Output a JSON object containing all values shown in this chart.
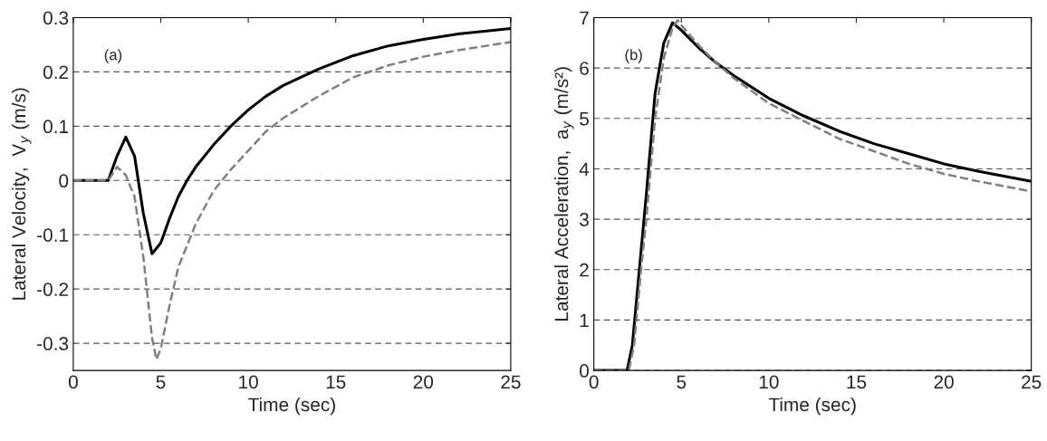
{
  "chart_data": [
    {
      "type": "line",
      "xlabel": "Time (sec)",
      "ylabel": "Lateral Velocity,  V$_{y}$ (m/s)",
      "annotations": [
        "(a)"
      ],
      "xlim": [
        0,
        25
      ],
      "xticks": [
        0,
        5,
        10,
        15,
        20,
        25
      ],
      "ylim": [
        -0.35,
        0.3
      ],
      "yticks": [
        -0.3,
        -0.2,
        -0.1,
        0,
        0.1,
        0.2,
        0.3
      ],
      "grid": "y",
      "series": [
        {
          "color": "#000000",
          "line_style": "solid",
          "x": [
            0,
            2,
            2.5,
            3,
            3.5,
            4,
            4.5,
            5,
            5.5,
            6,
            6.5,
            7,
            8,
            9,
            10,
            11,
            12,
            14,
            16,
            18,
            20,
            22,
            25
          ],
          "values": [
            0,
            0,
            0.045,
            0.08,
            0.045,
            -0.06,
            -0.135,
            -0.115,
            -0.07,
            -0.03,
            0.0,
            0.025,
            0.065,
            0.1,
            0.13,
            0.155,
            0.175,
            0.205,
            0.23,
            0.248,
            0.26,
            0.27,
            0.28
          ]
        },
        {
          "color": "#808080",
          "line_style": "dashed",
          "x": [
            0,
            2,
            2.5,
            3,
            3.5,
            4,
            4.5,
            4.75,
            5,
            5.5,
            6,
            7,
            8,
            9,
            10,
            11,
            12,
            14,
            16,
            18,
            20,
            22,
            25
          ],
          "values": [
            0,
            0,
            0.025,
            0.01,
            -0.03,
            -0.14,
            -0.29,
            -0.33,
            -0.31,
            -0.23,
            -0.16,
            -0.08,
            -0.02,
            0.02,
            0.055,
            0.09,
            0.115,
            0.155,
            0.19,
            0.212,
            0.228,
            0.24,
            0.255
          ]
        }
      ]
    },
    {
      "type": "line",
      "xlabel": "Time (sec)",
      "ylabel": "Lateral Acceleration,  a$_{y}$ (m/s²)",
      "annotations": [
        "(b)"
      ],
      "xlim": [
        0,
        25
      ],
      "xticks": [
        0,
        5,
        10,
        15,
        20,
        25
      ],
      "ylim": [
        0,
        7
      ],
      "yticks": [
        0,
        1,
        2,
        3,
        4,
        5,
        6,
        7
      ],
      "grid": "y",
      "series": [
        {
          "color": "#000000",
          "line_style": "solid",
          "x": [
            0,
            1.9,
            2.2,
            2.6,
            3,
            3.5,
            4,
            4.5,
            5,
            6,
            7,
            8,
            10,
            12,
            14,
            16,
            18,
            20,
            22,
            25
          ],
          "values": [
            0,
            0,
            0.5,
            2,
            3.5,
            5.5,
            6.5,
            6.9,
            6.75,
            6.4,
            6.1,
            5.85,
            5.4,
            5.05,
            4.75,
            4.5,
            4.3,
            4.1,
            3.95,
            3.75
          ]
        },
        {
          "color": "#808080",
          "line_style": "dashed",
          "x": [
            0,
            2,
            2.3,
            2.7,
            3,
            3.5,
            4,
            4.5,
            4.8,
            5,
            6,
            7,
            8,
            10,
            12,
            14,
            16,
            18,
            20,
            22,
            25
          ],
          "values": [
            0,
            0,
            0.5,
            2,
            3,
            5,
            6.2,
            6.8,
            6.95,
            6.85,
            6.45,
            6.1,
            5.8,
            5.3,
            4.95,
            4.6,
            4.35,
            4.1,
            3.9,
            3.75,
            3.55
          ]
        }
      ]
    }
  ]
}
